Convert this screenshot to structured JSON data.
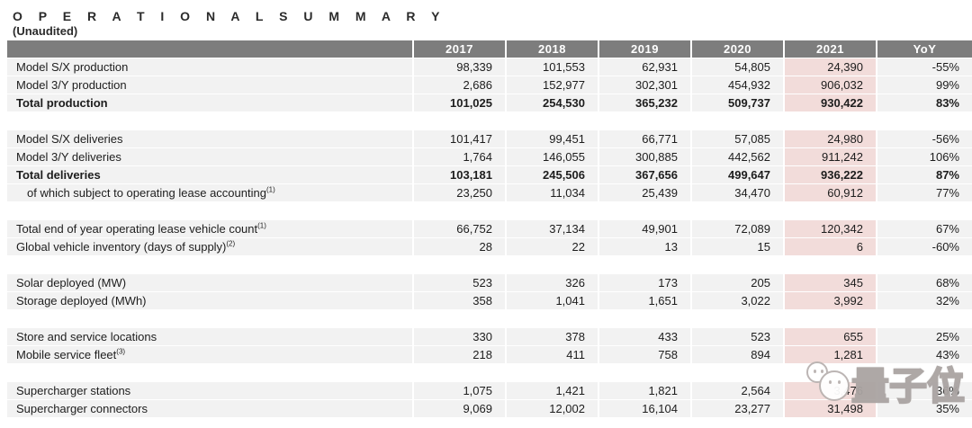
{
  "page": {
    "title": "O P E R A T I O N A L   S U M M A R Y",
    "title_plain": "OPERATIONAL SUMMARY",
    "subtitle": "(Unaudited)"
  },
  "table": {
    "columns": [
      "2017",
      "2018",
      "2019",
      "2020",
      "2021",
      "YoY"
    ],
    "highlight_column": "2021",
    "colors": {
      "header_bg": "#7d7d7d",
      "header_text": "#ffffff",
      "row_bg": "#f2f2f2",
      "highlight_bg": "#f2dcda",
      "text": "#1d1d1d"
    },
    "sections": [
      {
        "rows": [
          {
            "label": "Model S/X production",
            "values": [
              "98,339",
              "101,553",
              "62,931",
              "54,805",
              "24,390",
              "-55%"
            ]
          },
          {
            "label": "Model 3/Y production",
            "values": [
              "2,686",
              "152,977",
              "302,301",
              "454,932",
              "906,032",
              "99%"
            ]
          },
          {
            "label": "Total production",
            "bold": true,
            "values": [
              "101,025",
              "254,530",
              "365,232",
              "509,737",
              "930,422",
              "83%"
            ]
          }
        ]
      },
      {
        "rows": [
          {
            "label": "Model S/X deliveries",
            "values": [
              "101,417",
              "99,451",
              "66,771",
              "57,085",
              "24,980",
              "-56%"
            ]
          },
          {
            "label": "Model 3/Y deliveries",
            "values": [
              "1,764",
              "146,055",
              "300,885",
              "442,562",
              "911,242",
              "106%"
            ]
          },
          {
            "label": "Total deliveries",
            "bold": true,
            "values": [
              "103,181",
              "245,506",
              "367,656",
              "499,647",
              "936,222",
              "87%"
            ]
          },
          {
            "label": "of which subject to operating lease accounting",
            "sup": "(1)",
            "indent": true,
            "values": [
              "23,250",
              "11,034",
              "25,439",
              "34,470",
              "60,912",
              "77%"
            ]
          }
        ]
      },
      {
        "rows": [
          {
            "label": "Total end of year operating lease vehicle count",
            "sup": "(1)",
            "values": [
              "66,752",
              "37,134",
              "49,901",
              "72,089",
              "120,342",
              "67%"
            ]
          },
          {
            "label": "Global vehicle inventory (days of supply)",
            "sup": "(2)",
            "values": [
              "28",
              "22",
              "13",
              "15",
              "6",
              "-60%"
            ]
          }
        ]
      },
      {
        "rows": [
          {
            "label": "Solar deployed (MW)",
            "values": [
              "523",
              "326",
              "173",
              "205",
              "345",
              "68%"
            ]
          },
          {
            "label": "Storage deployed (MWh)",
            "values": [
              "358",
              "1,041",
              "1,651",
              "3,022",
              "3,992",
              "32%"
            ]
          }
        ]
      },
      {
        "rows": [
          {
            "label": "Store and service locations",
            "values": [
              "330",
              "378",
              "433",
              "523",
              "655",
              "25%"
            ]
          },
          {
            "label": "Mobile service fleet",
            "sup": "(3)",
            "values": [
              "218",
              "411",
              "758",
              "894",
              "1,281",
              "43%"
            ]
          }
        ]
      },
      {
        "rows": [
          {
            "label": "Supercharger stations",
            "values": [
              "1,075",
              "1,421",
              "1,821",
              "2,564",
              "3,476",
              "36%"
            ]
          },
          {
            "label": "Supercharger connectors",
            "values": [
              "9,069",
              "12,002",
              "16,104",
              "23,277",
              "31,498",
              "35%"
            ]
          }
        ]
      }
    ]
  },
  "watermark": {
    "text": "量子位"
  }
}
